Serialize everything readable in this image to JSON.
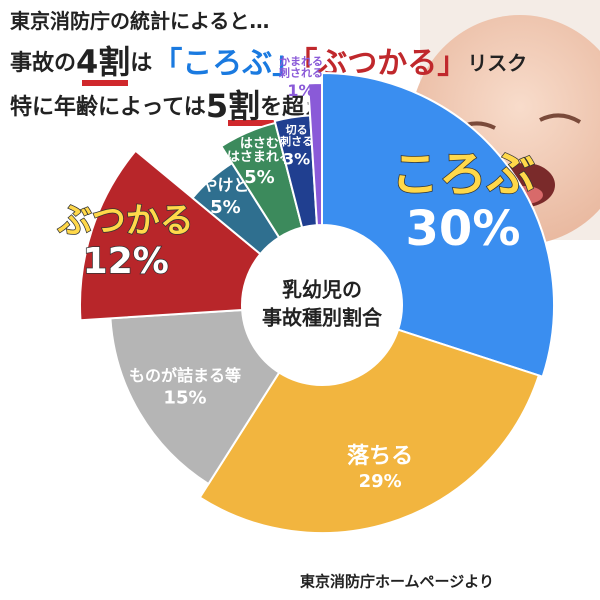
{
  "chart_data": {
    "type": "donut",
    "title": [
      [
        "東京消防庁の統計によると…"
      ],
      [
        "事故の",
        "4割",
        "は",
        "「ころぶ」",
        "「ぶつかる」",
        "リスク"
      ],
      [
        "特に年齢によっては",
        "5割",
        "を超えます"
      ]
    ],
    "center_label": [
      "乳幼児の",
      "事故種別割合"
    ],
    "source": "東京消防庁ホームページより",
    "categories": [
      [
        "ころぶ"
      ],
      [
        "落ちる"
      ],
      [
        "ものが詰まる等"
      ],
      [
        "ぶつかる"
      ],
      [
        "やけど"
      ],
      [
        "はさむ",
        "はさまれる"
      ],
      [
        "切る",
        "刺さる"
      ],
      [
        "かまれる",
        "刺される"
      ]
    ],
    "values": [
      30,
      29,
      15,
      12,
      5,
      5,
      3,
      1
    ],
    "value_labels": [
      "30%",
      "29%",
      "15%",
      "12%",
      "5%",
      "5%",
      "3%",
      "1%"
    ],
    "colors": [
      "#3a8ef0",
      "#f2b53f",
      "#b5b5b5",
      "#b8262a",
      "#2f6f8f",
      "#3c8a5c",
      "#203f90",
      "#8a5ad8"
    ]
  }
}
